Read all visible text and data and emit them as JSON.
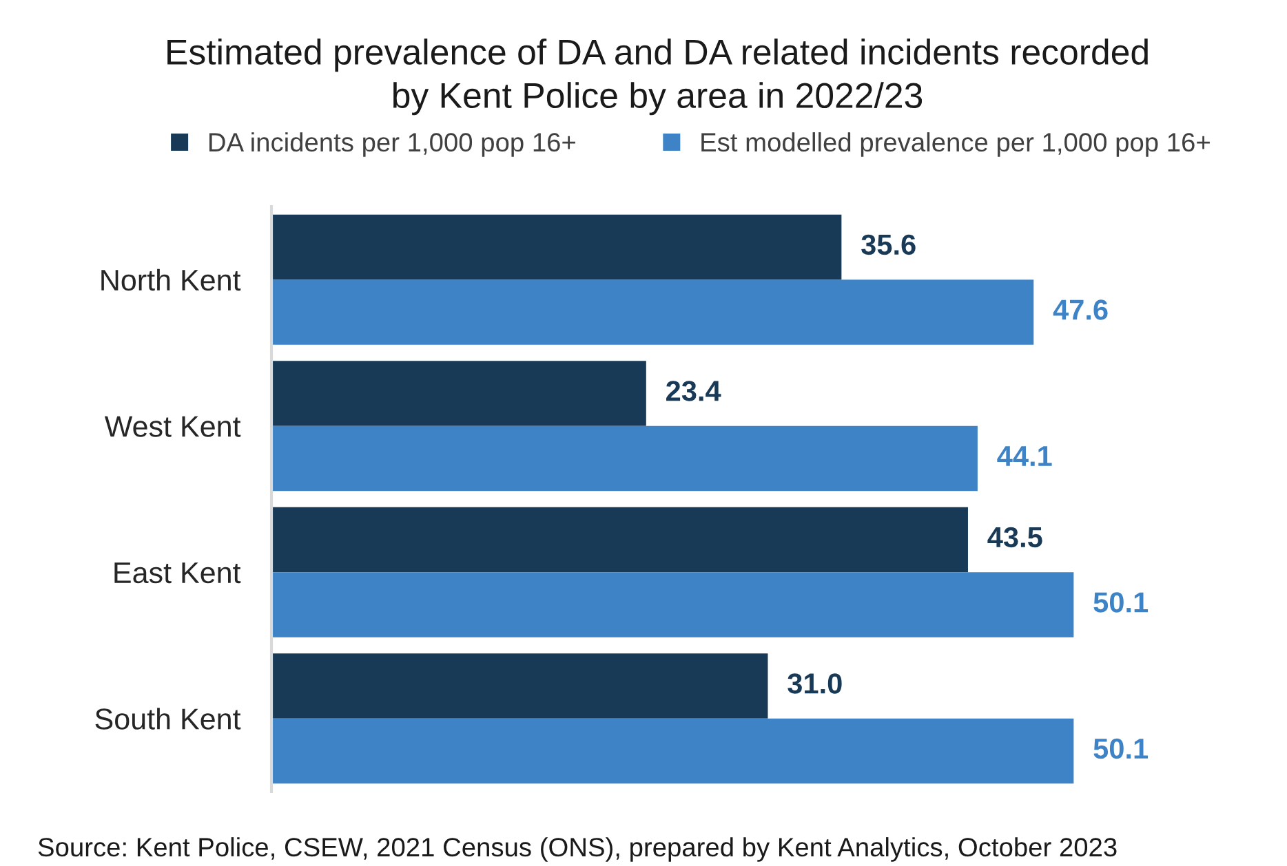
{
  "chart_data": {
    "type": "bar",
    "orientation": "horizontal",
    "title": "Estimated prevalence of DA and DA related incidents recorded\nby Kent Police by area in 2022/23",
    "categories": [
      "North Kent",
      "West Kent",
      "East Kent",
      "South Kent"
    ],
    "series": [
      {
        "name": "DA incidents per 1,000 pop 16+",
        "color": "#193a56",
        "values": [
          35.6,
          23.4,
          43.5,
          31.0
        ],
        "value_labels": [
          "35.6",
          "23.4",
          "43.5",
          "31.0"
        ]
      },
      {
        "name": "Est modelled prevalence per 1,000 pop 16+",
        "color": "#3e83c6",
        "values": [
          47.6,
          44.1,
          50.1,
          50.1
        ],
        "value_labels": [
          "47.6",
          "44.1",
          "50.1",
          "50.1"
        ]
      }
    ],
    "legend": "top",
    "tick_labels": "y",
    "annotations": [
      "Source: Kent Police, CSEW, 2021 Census (ONS), prepared by Kent Analytics, October 2023"
    ]
  }
}
